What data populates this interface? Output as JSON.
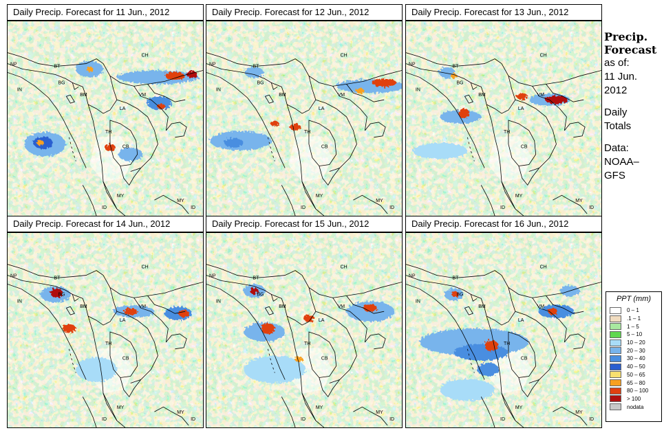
{
  "panels": [
    {
      "title": "Daily Precip. Forecast for  11 Jun., 2012",
      "storms": "storms11"
    },
    {
      "title": "Daily Precip. Forecast for  12 Jun., 2012",
      "storms": "storms12"
    },
    {
      "title": "Daily Precip. Forecast for  13 Jun., 2012",
      "storms": "storms13"
    },
    {
      "title": "Daily Precip. Forecast for  14 Jun., 2012",
      "storms": "storms14"
    },
    {
      "title": "Daily Precip. Forecast for  15 Jun., 2012",
      "storms": "storms15"
    },
    {
      "title": "Daily Precip. Forecast for  16 Jun., 2012",
      "storms": "storms16"
    }
  ],
  "country_labels": [
    "CH",
    "NP",
    "BT",
    "BG",
    "IN",
    "BM",
    "VM",
    "LA",
    "TH",
    "CB",
    "MY",
    "ID",
    "MY",
    "ID"
  ],
  "sidebar": {
    "heading_line1": "Precip.",
    "heading_line2": "Forecast",
    "asof": "as of:",
    "date_line1": "11 Jun.",
    "date_line2": "2012",
    "totals_line1": "Daily",
    "totals_line2": "Totals",
    "data_line1": "Data:",
    "data_line2": "NOAA–",
    "data_line3": "GFS"
  },
  "legend": {
    "title": "PPT (mm)",
    "items": [
      {
        "label": "0 – 1",
        "color": "#ffffff"
      },
      {
        "label": ".1 – 1",
        "color": "#f0dcc0"
      },
      {
        "label": "1 – 5",
        "color": "#a8e8a0"
      },
      {
        "label": "5 – 10",
        "color": "#60d850"
      },
      {
        "label": "10 – 20",
        "color": "#a8dcf8"
      },
      {
        "label": "20 – 30",
        "color": "#78b4ec"
      },
      {
        "label": "30 – 40",
        "color": "#4a8ee0"
      },
      {
        "label": "40 – 50",
        "color": "#2a5ed0"
      },
      {
        "label": "50 – 65",
        "color": "#f8e070"
      },
      {
        "label": "65 – 80",
        "color": "#f8a020"
      },
      {
        "label": "80 – 100",
        "color": "#e04010"
      },
      {
        "label": "> 100",
        "color": "#b01010"
      },
      {
        "label": "nodata",
        "color": "#c8c8c8"
      }
    ]
  }
}
